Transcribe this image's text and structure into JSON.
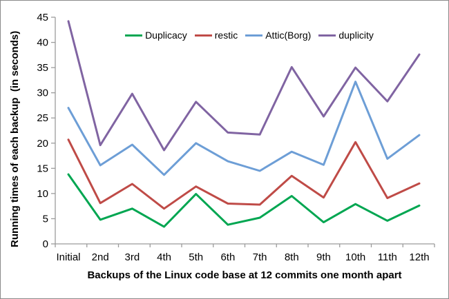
{
  "chart_data": {
    "type": "line",
    "title": "",
    "categories": [
      "Initial",
      "2nd",
      "3rd",
      "4th",
      "5th",
      "6th",
      "7th",
      "8th",
      "9th",
      "10th",
      "11th",
      "12th"
    ],
    "series": [
      {
        "name": "Duplicacy",
        "color": "#00A651",
        "values": [
          13.8,
          4.8,
          7.0,
          3.4,
          9.9,
          3.8,
          5.2,
          9.5,
          4.3,
          7.9,
          4.6,
          7.6
        ]
      },
      {
        "name": "restic",
        "color": "#BF4B47",
        "values": [
          20.7,
          8.1,
          11.9,
          7.0,
          11.4,
          8.0,
          7.8,
          13.5,
          9.2,
          20.2,
          9.1,
          12.0
        ]
      },
      {
        "name": "Attic(Borg)",
        "color": "#6D9ED6",
        "values": [
          27.0,
          15.6,
          19.7,
          13.7,
          20.0,
          16.4,
          14.5,
          18.3,
          15.7,
          32.2,
          16.9,
          21.6
        ]
      },
      {
        "name": "duplicity",
        "color": "#8064A2",
        "values": [
          44.2,
          19.6,
          29.8,
          18.6,
          28.2,
          22.1,
          21.7,
          35.1,
          25.3,
          35.0,
          28.3,
          37.6
        ]
      }
    ],
    "xlabel": "Backups of the Linux code base at 12 commits one month apart",
    "ylabel": "Running times of each backup  (in seconds)",
    "ylim": [
      0,
      45
    ],
    "ytick_step": 5,
    "legend_position": "top-center",
    "grid": false,
    "axis_color": "#9B9B9B",
    "text_color": "#000000"
  }
}
